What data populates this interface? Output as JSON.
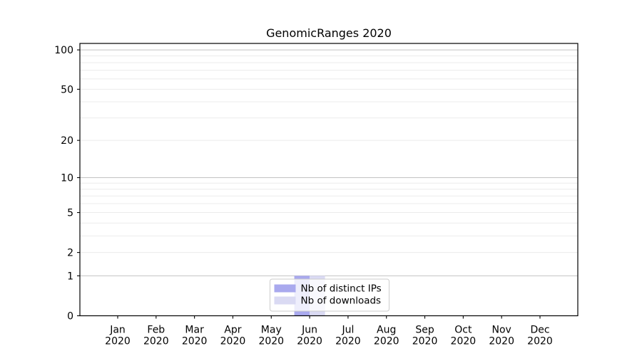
{
  "chart_data": {
    "type": "bar",
    "title": "GenomicRanges 2020",
    "categories": [
      "Jan 2020",
      "Feb 2020",
      "Mar 2020",
      "Apr 2020",
      "May 2020",
      "Jun 2020",
      "Jul 2020",
      "Aug 2020",
      "Sep 2020",
      "Oct 2020",
      "Nov 2020",
      "Dec 2020"
    ],
    "series": [
      {
        "name": "Nb of distinct IPs",
        "color": "#a9a9ee",
        "values": [
          0,
          0,
          0,
          0,
          0,
          1,
          0,
          0,
          0,
          0,
          0,
          0
        ]
      },
      {
        "name": "Nb of downloads",
        "color": "#dadaf3",
        "values": [
          0,
          0,
          0,
          0,
          0,
          1,
          0,
          0,
          0,
          0,
          0,
          0
        ]
      }
    ],
    "xlabel": "",
    "ylabel": "",
    "yscale": "log1p",
    "ylim": [
      0,
      112
    ],
    "yticks": [
      0,
      1,
      2,
      5,
      10,
      20,
      50,
      100
    ],
    "grid": {
      "on": true,
      "decade_values": [
        1,
        10,
        100
      ],
      "minor_values": [
        2,
        3,
        4,
        5,
        6,
        7,
        8,
        9,
        20,
        30,
        40,
        50,
        60,
        70,
        80,
        90
      ],
      "decade_color": "#c3c3c3",
      "minor_color": "#ebebeb"
    },
    "legend": {
      "position": "lower center",
      "entries": [
        "Nb of distinct IPs",
        "Nb of downloads"
      ],
      "background": "#ffffff",
      "border_color": "#cccccc"
    },
    "colors": {
      "axis": "#000000",
      "background": "#ffffff"
    }
  }
}
